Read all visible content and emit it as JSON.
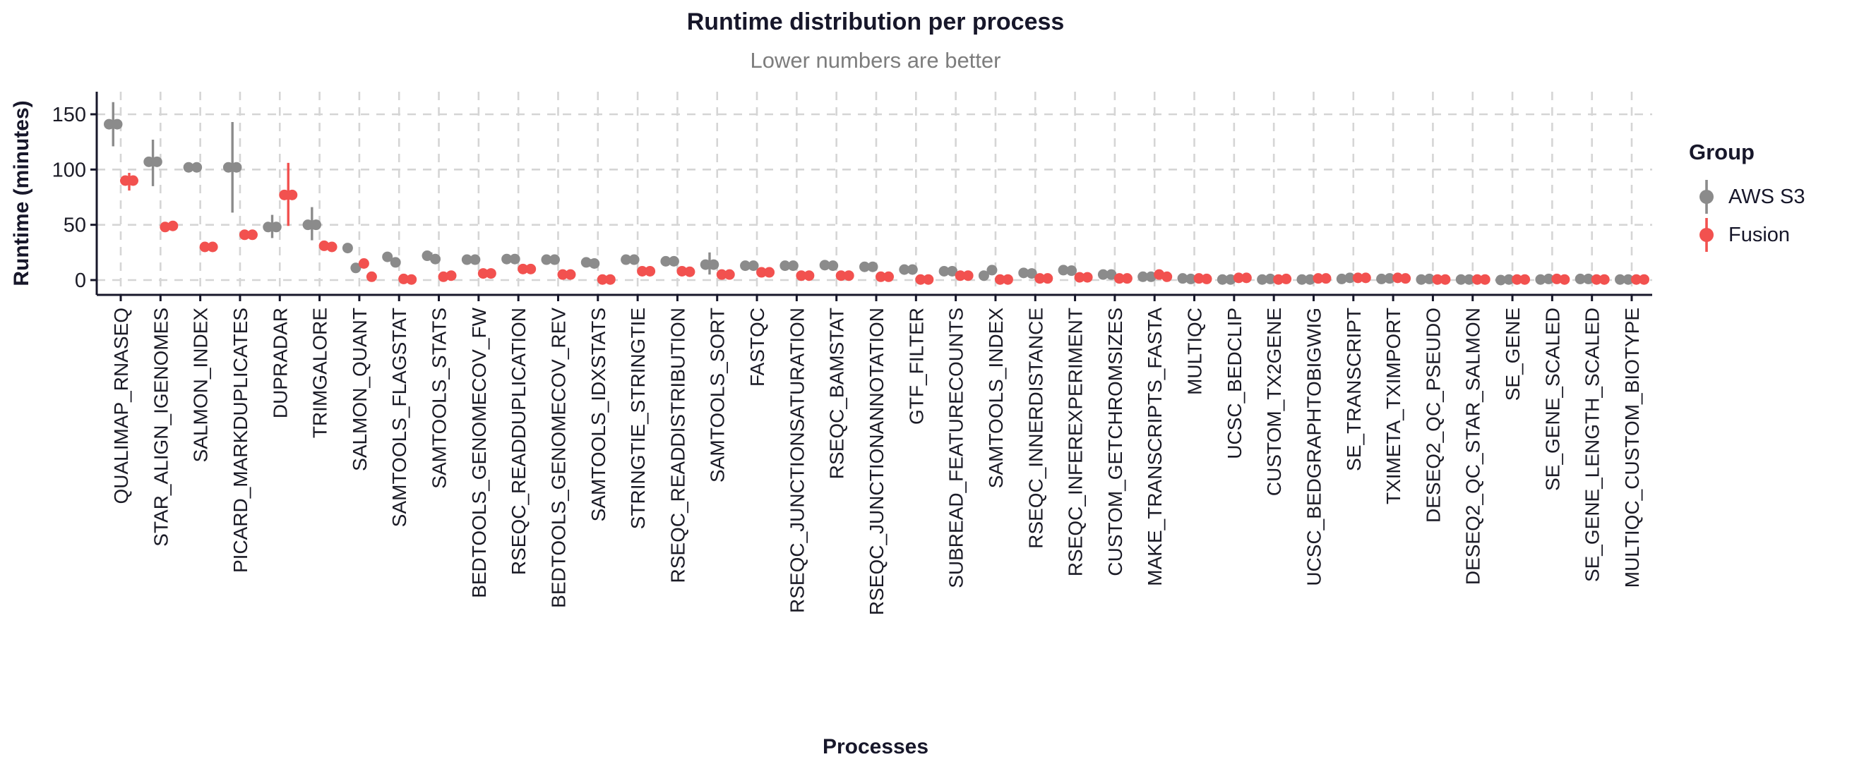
{
  "title": "Runtime distribution per process",
  "subtitle": "Lower numbers are better",
  "x_axis_title": "Processes",
  "y_axis_title": "Runtime (minutes)",
  "legend": {
    "title": "Group",
    "items": [
      {
        "label": "AWS S3",
        "color": "#8B8B8B"
      },
      {
        "label": "Fusion",
        "color": "#F2514F"
      }
    ]
  },
  "colors": {
    "aws": "#8B8B8B",
    "fusion": "#F2514F",
    "grid": "#D5D5D5",
    "axis": "#17172a",
    "tick_text": "#1b1b26",
    "subtitle_text": "#7d7d7d"
  },
  "chart_data": {
    "type": "scatter",
    "title": "Runtime distribution per process",
    "subtitle": "Lower numbers are better",
    "xlabel": "Processes",
    "ylabel": "Runtime (minutes)",
    "ylim": [
      0,
      165
    ],
    "y_ticks": [
      0,
      50,
      100,
      150
    ],
    "grid": "dashed",
    "legend_position": "right",
    "series_names": [
      "AWS S3",
      "Fusion"
    ],
    "note": "Each process shows two sample points per group (AWS S3 gray, left; Fusion red, right); vertical lines are min-max ranges in minutes.",
    "processes": [
      {
        "name": "QUALIMAP_RNASEQ",
        "aws": [
          141,
          141
        ],
        "aws_range": [
          121,
          161
        ],
        "fusion": [
          90,
          90
        ],
        "fusion_range": [
          81,
          97
        ]
      },
      {
        "name": "STAR_ALIGN_IGENOMES",
        "aws": [
          107,
          107
        ],
        "aws_range": [
          85,
          127
        ],
        "fusion": [
          48,
          49
        ]
      },
      {
        "name": "SALMON_INDEX",
        "aws": [
          102,
          102
        ],
        "fusion": [
          30,
          30
        ]
      },
      {
        "name": "PICARD_MARKDUPLICATES",
        "aws": [
          102,
          102
        ],
        "aws_range": [
          61,
          143
        ],
        "fusion": [
          41,
          41
        ]
      },
      {
        "name": "DUPRADAR",
        "aws": [
          48,
          48
        ],
        "aws_range": [
          38,
          59
        ],
        "fusion": [
          77,
          77
        ],
        "fusion_range": [
          49,
          106
        ]
      },
      {
        "name": "TRIMGALORE",
        "aws": [
          50,
          50
        ],
        "aws_range": [
          36,
          66
        ],
        "fusion": [
          31,
          30
        ]
      },
      {
        "name": "SALMON_QUANT",
        "aws": [
          29,
          11
        ],
        "fusion": [
          15,
          3
        ]
      },
      {
        "name": "SAMTOOLS_FLAGSTAT",
        "aws": [
          21,
          16
        ],
        "fusion": [
          1,
          0.5
        ]
      },
      {
        "name": "SAMTOOLS_STATS",
        "aws": [
          22,
          19
        ],
        "aws_range": [
          18,
          25
        ],
        "fusion": [
          3,
          4
        ]
      },
      {
        "name": "BEDTOOLS_GENOMECOV_FW",
        "aws": [
          18.5,
          18.5
        ],
        "fusion": [
          6,
          6
        ]
      },
      {
        "name": "RSEQC_READDUPLICATION",
        "aws": [
          19,
          19
        ],
        "fusion": [
          10,
          10
        ]
      },
      {
        "name": "BEDTOOLS_GENOMECOV_REV",
        "aws": [
          18.5,
          18.5
        ],
        "fusion": [
          5,
          5
        ]
      },
      {
        "name": "SAMTOOLS_IDXSTATS",
        "aws": [
          16,
          15
        ],
        "aws_range": [
          12,
          19
        ],
        "fusion": [
          0.5,
          0.5
        ]
      },
      {
        "name": "STRINGTIE_STRINGTIE",
        "aws": [
          18.5,
          18.5
        ],
        "fusion": [
          8,
          8
        ]
      },
      {
        "name": "RSEQC_READDISTRIBUTION",
        "aws": [
          17,
          17
        ],
        "fusion": [
          8,
          7.5
        ]
      },
      {
        "name": "SAMTOOLS_SORT",
        "aws": [
          14,
          14
        ],
        "aws_range": [
          5,
          25
        ],
        "fusion": [
          5,
          5
        ]
      },
      {
        "name": "FASTQC",
        "aws": [
          13,
          13
        ],
        "fusion": [
          7,
          7
        ]
      },
      {
        "name": "RSEQC_JUNCTIONSATURATION",
        "aws": [
          13,
          13
        ],
        "fusion": [
          4,
          4
        ]
      },
      {
        "name": "RSEQC_BAMSTAT",
        "aws": [
          13.5,
          13
        ],
        "fusion": [
          4,
          4
        ]
      },
      {
        "name": "RSEQC_JUNCTIONANNOTATION",
        "aws": [
          12,
          12
        ],
        "fusion": [
          3,
          3
        ]
      },
      {
        "name": "GTF_FILTER",
        "aws": [
          9.5,
          9.5
        ],
        "fusion": [
          0.5,
          0.5
        ]
      },
      {
        "name": "SUBREAD_FEATURECOUNTS",
        "aws": [
          8,
          8
        ],
        "fusion": [
          4,
          4
        ]
      },
      {
        "name": "SAMTOOLS_INDEX",
        "aws": [
          4,
          9
        ],
        "fusion": [
          0.5,
          0.5
        ]
      },
      {
        "name": "RSEQC_INNERDISTANCE",
        "aws": [
          6.5,
          6
        ],
        "fusion": [
          1.5,
          1.5
        ]
      },
      {
        "name": "RSEQC_INFEREXPERIMENT",
        "aws": [
          9,
          8.5
        ],
        "fusion": [
          2.5,
          2.5
        ]
      },
      {
        "name": "CUSTOM_GETCHROMSIZES",
        "aws": [
          5,
          5
        ],
        "fusion": [
          1.5,
          1.5
        ]
      },
      {
        "name": "MAKE_TRANSCRIPTS_FASTA",
        "aws": [
          3,
          3
        ],
        "fusion": [
          5,
          3
        ]
      },
      {
        "name": "MULTIQC",
        "aws": [
          1.5,
          1
        ],
        "fusion": [
          1.5,
          1
        ]
      },
      {
        "name": "UCSC_BEDCLIP",
        "aws": [
          0.5,
          0.5
        ],
        "fusion": [
          2,
          2
        ],
        "fusion_range": [
          0,
          4.5
        ]
      },
      {
        "name": "CUSTOM_TX2GENE",
        "aws": [
          0.5,
          1
        ],
        "fusion": [
          0.5,
          1
        ]
      },
      {
        "name": "UCSC_BEDGRAPHTOBIGWIG",
        "aws": [
          0.5,
          0.5
        ],
        "fusion": [
          1.5,
          1.5
        ]
      },
      {
        "name": "SE_TRANSCRIPT",
        "aws": [
          1,
          2
        ],
        "fusion": [
          2,
          2
        ],
        "fusion_range": [
          0,
          4.5
        ]
      },
      {
        "name": "TXIMETA_TXIMPORT",
        "aws": [
          1,
          1.5
        ],
        "fusion": [
          2,
          1.5
        ]
      },
      {
        "name": "DESEQ2_QC_PSEUDO",
        "aws": [
          0.5,
          1
        ],
        "fusion": [
          0.5,
          0.5
        ]
      },
      {
        "name": "DESEQ2_QC_STAR_SALMON",
        "aws": [
          0.5,
          0.5
        ],
        "fusion": [
          0.5,
          0.5
        ]
      },
      {
        "name": "SE_GENE",
        "aws": [
          0,
          0.5
        ],
        "fusion": [
          0.5,
          0.5
        ]
      },
      {
        "name": "SE_GENE_SCALED",
        "aws": [
          0.5,
          1
        ],
        "fusion": [
          1,
          0.5
        ]
      },
      {
        "name": "SE_GENE_LENGTH_SCALED",
        "aws": [
          1,
          1
        ],
        "fusion": [
          0.5,
          0.5
        ]
      },
      {
        "name": "MULTIQC_CUSTOM_BIOTYPE",
        "aws": [
          0.5,
          0.5
        ],
        "fusion": [
          0.5,
          0.5
        ]
      }
    ]
  }
}
